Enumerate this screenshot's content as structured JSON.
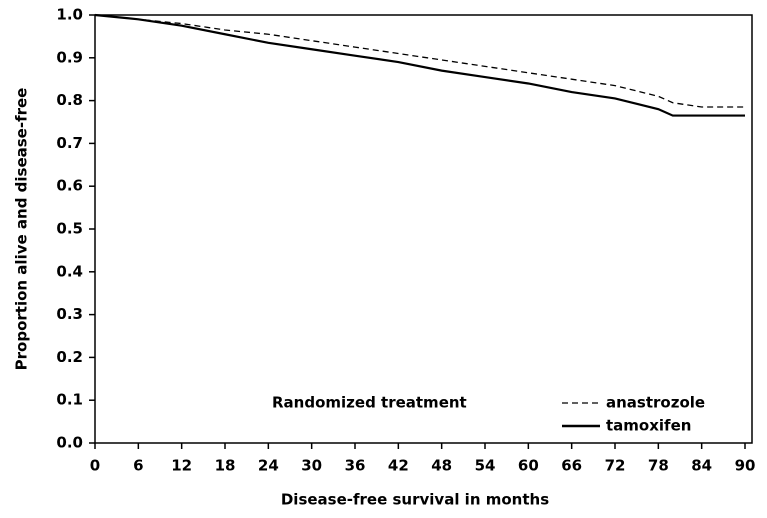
{
  "chart_data": {
    "type": "line",
    "x_label": "Disease-free survival in months",
    "y_label": "Proportion alive and disease-free",
    "x": [
      0,
      6,
      12,
      18,
      24,
      30,
      36,
      42,
      48,
      54,
      60,
      66,
      72,
      78,
      80,
      84,
      90
    ],
    "series": [
      {
        "name": "anastrozole",
        "color": "#000000",
        "style": "dashed",
        "values": [
          1.0,
          0.99,
          0.98,
          0.965,
          0.955,
          0.94,
          0.925,
          0.91,
          0.895,
          0.88,
          0.865,
          0.85,
          0.835,
          0.81,
          0.795,
          0.785,
          0.785
        ]
      },
      {
        "name": "tamoxifen",
        "color": "#000000",
        "style": "solid",
        "values": [
          1.0,
          0.99,
          0.975,
          0.955,
          0.935,
          0.92,
          0.905,
          0.89,
          0.87,
          0.855,
          0.84,
          0.82,
          0.805,
          0.78,
          0.765,
          0.765,
          0.765
        ]
      }
    ],
    "legend_title": "Randomized treatment",
    "xlim": [
      0,
      90
    ],
    "xticks": [
      0,
      6,
      12,
      18,
      24,
      30,
      36,
      42,
      48,
      54,
      60,
      66,
      72,
      78,
      84,
      90
    ],
    "ylim": [
      0,
      1
    ],
    "yticks": [
      {
        "value": 0,
        "label": "0.0"
      },
      0.1,
      0.2,
      0.3,
      0.4,
      0.5,
      0.6,
      0.7,
      0.8,
      0.9,
      {
        "value": 1,
        "label": "1.0"
      }
    ],
    "grid": false
  }
}
